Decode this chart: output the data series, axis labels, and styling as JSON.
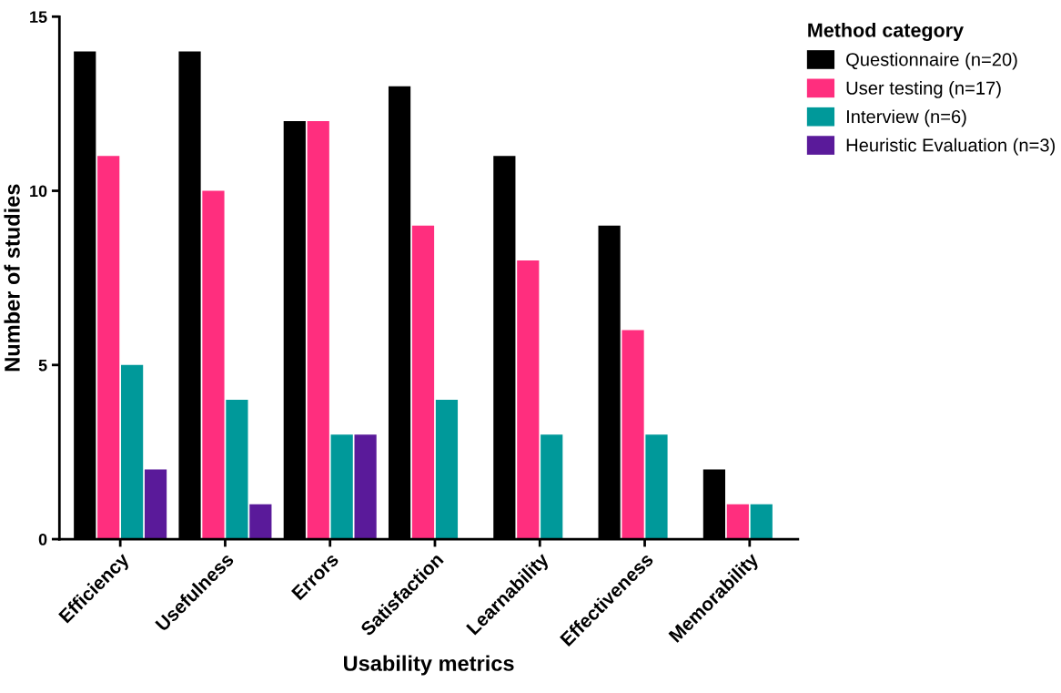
{
  "chart_data": {
    "type": "bar",
    "xlabel": "Usability metrics",
    "ylabel": "Number of studies",
    "legend_title": "Method category",
    "categories": [
      "Efficiency",
      "Usefulness",
      "Errors",
      "Satisfaction",
      "Learnability",
      "Effectiveness",
      "Memorability"
    ],
    "series": [
      {
        "name": "Questionnaire (n=20)",
        "color": "#000000",
        "values": [
          14,
          14,
          12,
          13,
          11,
          9,
          2
        ]
      },
      {
        "name": "User testing (n=17)",
        "color": "#ff2e7e",
        "values": [
          11,
          10,
          12,
          9,
          8,
          6,
          1
        ]
      },
      {
        "name": "Interview (n=6)",
        "color": "#00999a",
        "values": [
          5,
          4,
          3,
          4,
          3,
          3,
          1
        ]
      },
      {
        "name": "Heuristic Evaluation (n=3)",
        "color": "#5a1a9a",
        "values": [
          2,
          1,
          3,
          0,
          0,
          0,
          0
        ]
      }
    ],
    "ylim": [
      0,
      15
    ],
    "yticks": [
      0,
      5,
      10,
      15
    ],
    "grid": false,
    "legend": "top right"
  }
}
